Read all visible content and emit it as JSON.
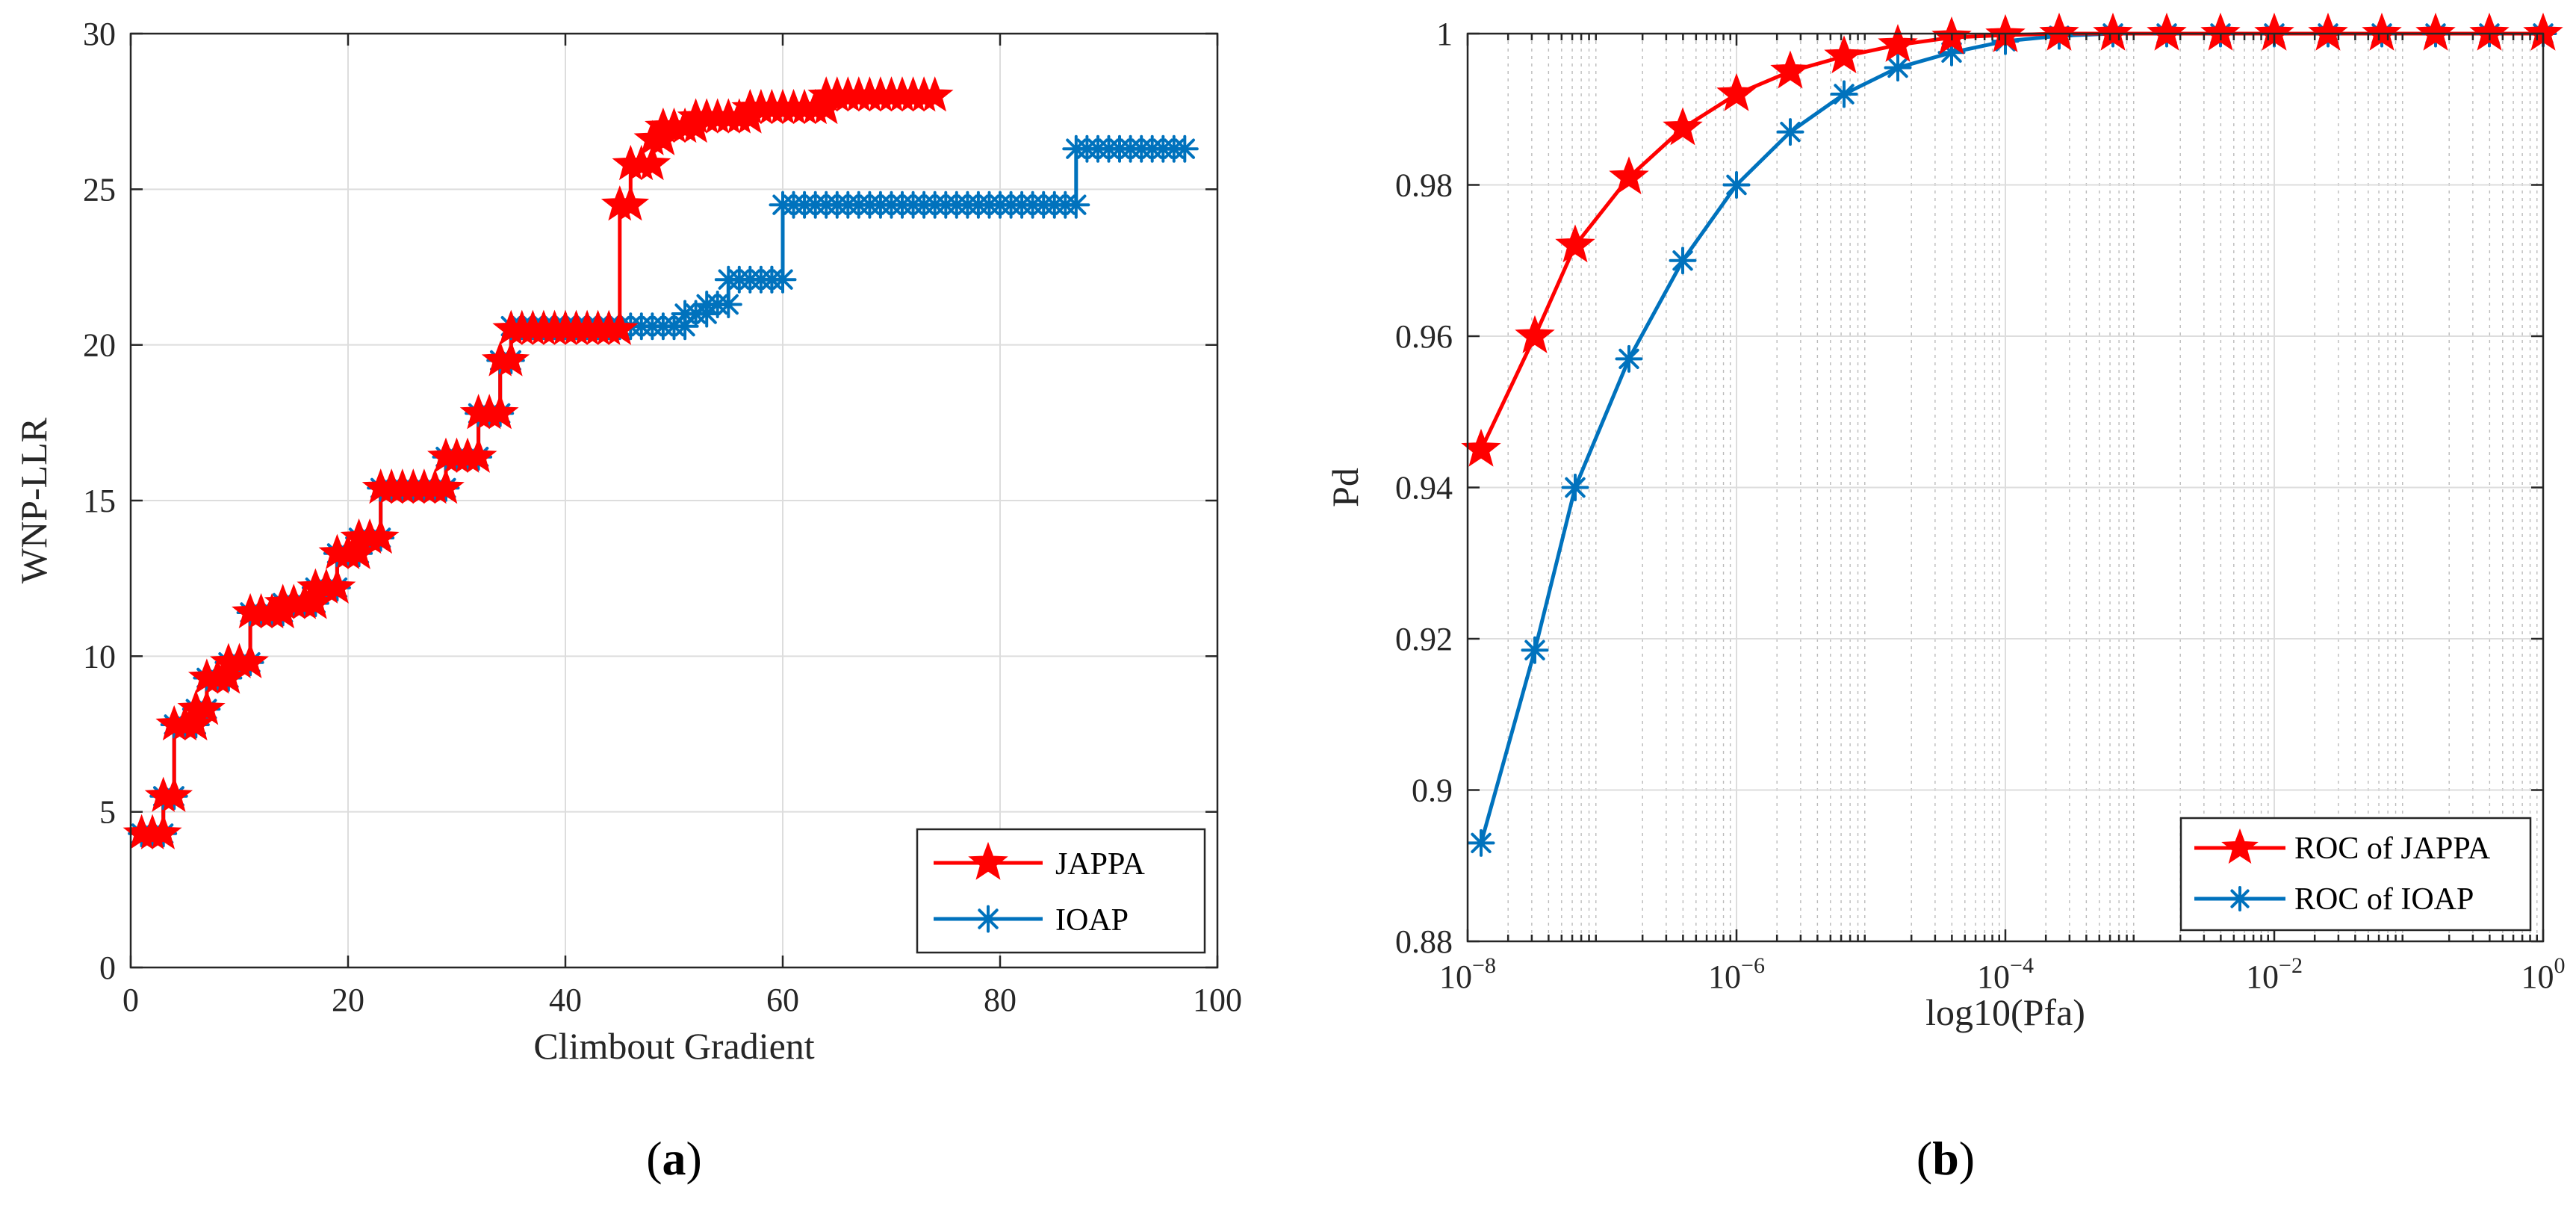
{
  "colors": {
    "red": "#ff0000",
    "blue": "#0072bd",
    "axis": "#262626",
    "grid": "#dddddd"
  },
  "chart_data": [
    {
      "type": "line",
      "panel_label": "a",
      "xlabel": "Climbout Gradient",
      "ylabel": "WNP-LLR",
      "xlim": [
        0,
        100
      ],
      "ylim": [
        0,
        30
      ],
      "xticks": [
        0,
        20,
        40,
        60,
        80,
        100
      ],
      "xtick_labels": [
        "0",
        "20",
        "40",
        "60",
        "80",
        "100"
      ],
      "yticks": [
        0,
        5,
        10,
        15,
        20,
        25,
        30
      ],
      "ytick_labels": [
        "0",
        "5",
        "10",
        "15",
        "20",
        "25",
        "30"
      ],
      "grid": true,
      "legend": "bottom-right",
      "series": [
        {
          "name": "JAPPA",
          "color": "#ff0000",
          "marker": "star",
          "steps": [
            [
              1,
              3,
              4.3
            ],
            [
              3,
              4,
              5.5
            ],
            [
              4,
              6,
              7.8
            ],
            [
              6,
              7,
              8.3
            ],
            [
              7,
              9,
              9.3
            ],
            [
              9,
              11,
              9.8
            ],
            [
              11,
              14,
              11.4
            ],
            [
              14,
              17,
              11.7
            ],
            [
              17,
              19,
              12.2
            ],
            [
              19,
              21,
              13.3
            ],
            [
              21,
              23,
              13.8
            ],
            [
              23,
              29,
              15.4
            ],
            [
              29,
              32,
              16.4
            ],
            [
              32,
              34,
              17.8
            ],
            [
              34,
              35,
              19.5
            ],
            [
              35,
              45,
              20.5
            ],
            [
              45,
              46,
              24.5
            ],
            [
              46,
              48,
              25.8
            ],
            [
              48,
              49,
              26.6
            ],
            [
              49,
              52,
              27.0
            ],
            [
              52,
              57,
              27.3
            ],
            [
              57,
              64,
              27.6
            ],
            [
              64,
              74,
              28.0
            ]
          ]
        },
        {
          "name": "IOAP",
          "color": "#0072bd",
          "marker": "asterisk",
          "steps": [
            [
              1,
              3,
              4.3
            ],
            [
              3,
              4,
              5.5
            ],
            [
              4,
              6,
              7.8
            ],
            [
              6,
              7,
              8.3
            ],
            [
              7,
              9,
              9.3
            ],
            [
              9,
              11,
              9.8
            ],
            [
              11,
              14,
              11.4
            ],
            [
              14,
              17,
              11.7
            ],
            [
              17,
              19,
              12.2
            ],
            [
              19,
              21,
              13.3
            ],
            [
              21,
              23,
              13.8
            ],
            [
              23,
              29,
              15.4
            ],
            [
              29,
              32,
              16.4
            ],
            [
              32,
              34,
              17.8
            ],
            [
              34,
              35,
              19.5
            ],
            [
              35,
              51,
              20.6
            ],
            [
              51,
              53,
              21.0
            ],
            [
              53,
              55,
              21.3
            ],
            [
              55,
              59,
              22.1
            ],
            [
              59,
              60,
              22.1
            ],
            [
              60,
              87,
              24.5
            ],
            [
              87,
              97,
              26.3
            ]
          ]
        }
      ]
    },
    {
      "type": "line",
      "panel_label": "b",
      "xlabel": "log10(Pfa)",
      "ylabel": "Pd",
      "xscale": "log",
      "xlim_exp": [
        -8,
        0
      ],
      "ylim": [
        0.88,
        1
      ],
      "xtick_exps": [
        -8,
        -6,
        -4,
        -2,
        0
      ],
      "xtick_bases": [
        "10",
        "10",
        "10",
        "10",
        "10"
      ],
      "xtick_powers": [
        "−8",
        "−6",
        "−4",
        "−2",
        "0"
      ],
      "yticks": [
        0.88,
        0.9,
        0.92,
        0.94,
        0.96,
        0.98,
        1
      ],
      "ytick_labels": [
        "0.88",
        "0.9",
        "0.92",
        "0.94",
        "0.96",
        "0.98",
        "1"
      ],
      "grid": true,
      "legend": "bottom-right",
      "series": [
        {
          "name": "ROC of JAPPA",
          "color": "#ff0000",
          "marker": "star",
          "log_x": [
            -7.9,
            -7.5,
            -7.2,
            -6.8,
            -6.4,
            -6.0,
            -5.6,
            -5.2,
            -4.8,
            -4.4,
            -4.0,
            -3.6,
            -3.2,
            -2.8,
            -2.4,
            -2.0,
            -1.6,
            -1.2,
            -0.8,
            -0.4,
            0.0
          ],
          "y": [
            0.945,
            0.96,
            0.972,
            0.981,
            0.9875,
            0.992,
            0.995,
            0.997,
            0.9985,
            0.9995,
            0.9998,
            1.0,
            1.0,
            1.0,
            1.0,
            1.0,
            1.0,
            1.0,
            1.0,
            1.0,
            1.0
          ]
        },
        {
          "name": "ROC of IOAP",
          "color": "#0072bd",
          "marker": "asterisk",
          "log_x": [
            -7.9,
            -7.5,
            -7.2,
            -6.8,
            -6.4,
            -6.0,
            -5.6,
            -5.2,
            -4.8,
            -4.4,
            -4.0,
            -3.6,
            -3.2,
            -2.8,
            -2.4,
            -2.0,
            -1.6,
            -1.2,
            -0.8,
            -0.4,
            0.0
          ],
          "y": [
            0.893,
            0.9185,
            0.94,
            0.957,
            0.97,
            0.98,
            0.987,
            0.992,
            0.9955,
            0.9975,
            0.999,
            0.9997,
            1.0,
            1.0,
            1.0,
            1.0,
            1.0,
            1.0,
            1.0,
            1.0,
            1.0
          ]
        }
      ]
    }
  ]
}
